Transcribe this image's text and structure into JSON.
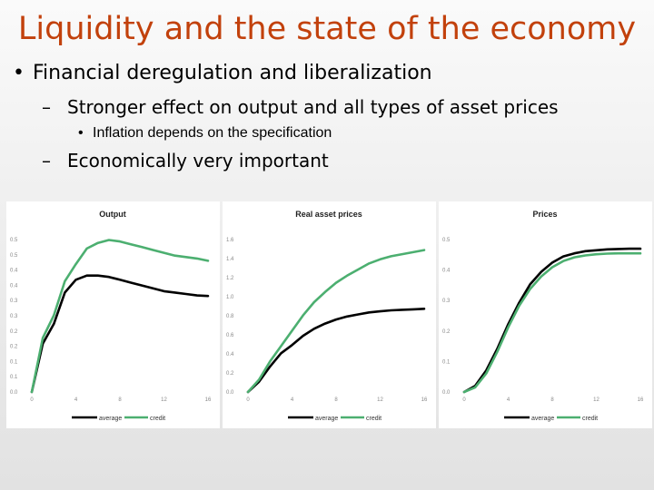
{
  "slide": {
    "title": "Liquidity and the state of the economy",
    "bullet_l1": "Financial deregulation and liberalization",
    "bullet_l2a": "Stronger effect on output and all types of asset prices",
    "bullet_l3": "Inflation depends on the specification",
    "bullet_l2b": "Economically very important",
    "dash": "–",
    "dot": "•"
  },
  "colors": {
    "title": "#c2410c",
    "average": "#000000",
    "credit": "#4caf70"
  },
  "chart_data": [
    {
      "type": "line",
      "title": "Output",
      "x": [
        0,
        1,
        2,
        3,
        4,
        5,
        6,
        7,
        8,
        9,
        10,
        11,
        12,
        13,
        14,
        15,
        16
      ],
      "xticks": [
        "0",
        "4",
        "8",
        "12",
        "16"
      ],
      "yticks": [
        "0.0",
        "0.1",
        "0.1",
        "0.2",
        "0.2",
        "0.3",
        "0.3",
        "0.4",
        "0.4",
        "0.5",
        "0.5"
      ],
      "ylim": [
        0,
        0.575
      ],
      "series": [
        {
          "name": "average",
          "values": [
            0,
            0.17,
            0.24,
            0.35,
            0.395,
            0.41,
            0.41,
            0.405,
            0.395,
            0.385,
            0.375,
            0.365,
            0.355,
            0.35,
            0.345,
            0.34,
            0.338
          ]
        },
        {
          "name": "credit",
          "values": [
            0,
            0.19,
            0.27,
            0.39,
            0.45,
            0.505,
            0.525,
            0.535,
            0.53,
            0.52,
            0.51,
            0.5,
            0.49,
            0.48,
            0.475,
            0.47,
            0.462
          ]
        }
      ],
      "legend": "bottom"
    },
    {
      "type": "line",
      "title": "Real asset prices",
      "x": [
        0,
        1,
        2,
        3,
        4,
        5,
        6,
        7,
        8,
        9,
        10,
        11,
        12,
        13,
        14,
        15,
        16
      ],
      "xticks": [
        "0",
        "4",
        "8",
        "12",
        "16"
      ],
      "yticks": [
        "0.0",
        "0.2",
        "0.4",
        "0.6",
        "0.8",
        "1.0",
        "1.2",
        "1.4",
        "1.6"
      ],
      "ylim": [
        0,
        1.6
      ],
      "series": [
        {
          "name": "average",
          "values": [
            0,
            0.1,
            0.25,
            0.38,
            0.46,
            0.55,
            0.62,
            0.67,
            0.71,
            0.74,
            0.76,
            0.78,
            0.79,
            0.8,
            0.805,
            0.81,
            0.815
          ]
        },
        {
          "name": "credit",
          "values": [
            0,
            0.12,
            0.3,
            0.45,
            0.6,
            0.75,
            0.88,
            0.98,
            1.07,
            1.14,
            1.2,
            1.26,
            1.3,
            1.33,
            1.35,
            1.37,
            1.39
          ]
        }
      ],
      "legend": "bottom"
    },
    {
      "type": "line",
      "title": "Prices",
      "x": [
        0,
        1,
        2,
        3,
        4,
        5,
        6,
        7,
        8,
        9,
        10,
        11,
        12,
        13,
        14,
        15,
        16
      ],
      "xticks": [
        "0",
        "4",
        "8",
        "12",
        "16"
      ],
      "yticks": [
        "0.0",
        "0.1",
        "0.2",
        "0.3",
        "0.4",
        "0.5"
      ],
      "ylim": [
        0,
        0.53
      ],
      "series": [
        {
          "name": "average",
          "values": [
            0,
            0.02,
            0.07,
            0.14,
            0.22,
            0.29,
            0.35,
            0.39,
            0.42,
            0.44,
            0.45,
            0.457,
            0.46,
            0.463,
            0.464,
            0.465,
            0.465
          ]
        },
        {
          "name": "credit",
          "values": [
            0,
            0.015,
            0.06,
            0.13,
            0.21,
            0.28,
            0.335,
            0.375,
            0.405,
            0.425,
            0.437,
            0.443,
            0.447,
            0.449,
            0.45,
            0.45,
            0.45
          ]
        }
      ],
      "legend": "bottom"
    }
  ]
}
